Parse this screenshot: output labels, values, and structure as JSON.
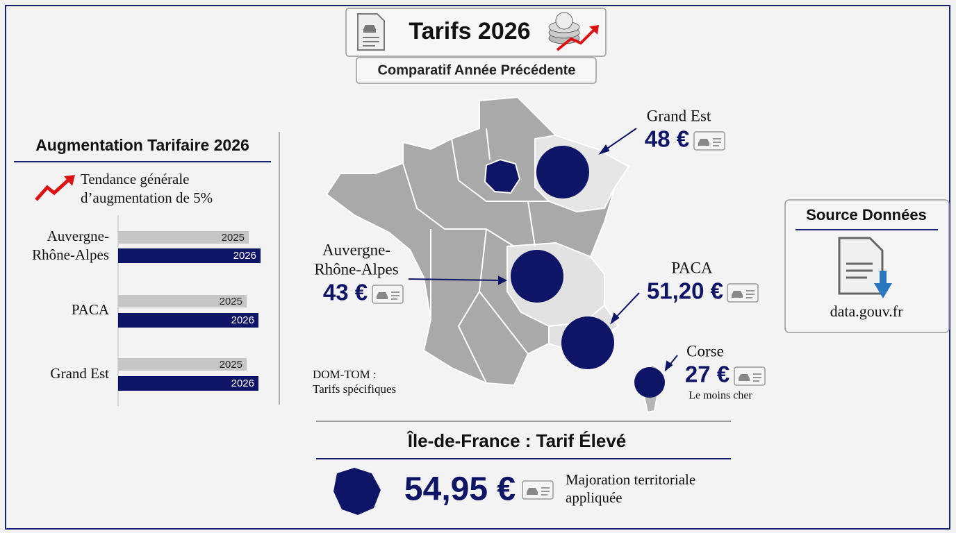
{
  "header": {
    "title": "Tarifs 2026",
    "subtitle": "Comparatif Année Précédente"
  },
  "left_panel": {
    "title": "Augmentation Tarifaire 2026",
    "trend": [
      "Tendance générale",
      "d’augmentation de 5%"
    ],
    "regions": [
      {
        "name": [
          "Auvergne-",
          "Rhône-Alpes"
        ],
        "bars": [
          "2025",
          "2026"
        ]
      },
      {
        "name": [
          "PACA"
        ],
        "bars": [
          "2025",
          "2026"
        ]
      },
      {
        "name": [
          "Grand Est"
        ],
        "bars": [
          "2025",
          "2026"
        ]
      }
    ]
  },
  "map": {
    "callouts": [
      {
        "region": [
          "Grand Est"
        ],
        "price": "48 €"
      },
      {
        "region": [
          "Auvergne-",
          "Rhône-Alpes"
        ],
        "price": "43 €"
      },
      {
        "region": [
          "PACA"
        ],
        "price": "51,20 €"
      },
      {
        "region": [
          "Corse"
        ],
        "price": "27 €",
        "note": "Le moins cher"
      }
    ],
    "dom_tom": [
      "DOM-TOM :",
      "Tarifs spécifiques"
    ]
  },
  "highlight": {
    "title": "Île-de-France : Tarif Élevé",
    "price": "54,95 €",
    "note": [
      "Majoration territoriale",
      "appliquée"
    ]
  },
  "source": {
    "title": "Source Données",
    "value": "data.gouv.fr"
  }
}
